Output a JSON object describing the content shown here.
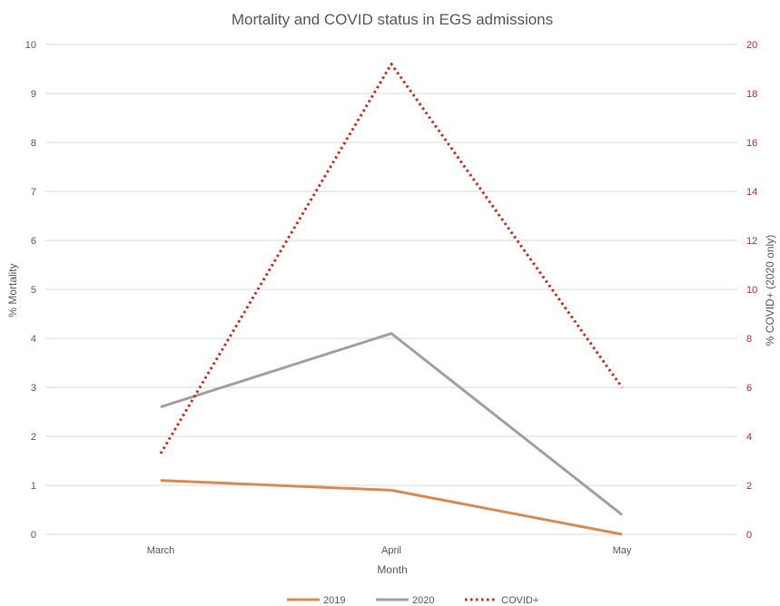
{
  "chart_data": {
    "type": "line",
    "title": "Mortality and COVID status in EGS admissions",
    "xlabel": "Month",
    "ylabel": "% Mortality",
    "y2label": "% COVID+ (2020 only)",
    "categories": [
      "March",
      "April",
      "May"
    ],
    "ylim": [
      0,
      10
    ],
    "y2lim": [
      0,
      20
    ],
    "yticks": [
      "0",
      "1",
      "2",
      "3",
      "4",
      "5",
      "6",
      "7",
      "8",
      "9",
      "10"
    ],
    "y2ticks": [
      "0",
      "2",
      "4",
      "6",
      "8",
      "10",
      "12",
      "14",
      "16",
      "18",
      "20"
    ],
    "grid": true,
    "legend_position": "bottom",
    "series": [
      {
        "name": "2019",
        "axis": "left",
        "values": [
          1.1,
          0.9,
          0.0
        ],
        "color": "#D98B52",
        "style": "solid"
      },
      {
        "name": "2020",
        "axis": "left",
        "values": [
          2.6,
          4.1,
          0.4
        ],
        "color": "#A49FA1",
        "style": "solid"
      },
      {
        "name": "COVID+",
        "axis": "right",
        "values": [
          3.3,
          19.2,
          6.0
        ],
        "color": "#D7261E",
        "style": "dotted"
      }
    ],
    "colors": {
      "right_axis": "#C0281E",
      "grid": "#D9D9D9",
      "text": "#595959"
    }
  }
}
